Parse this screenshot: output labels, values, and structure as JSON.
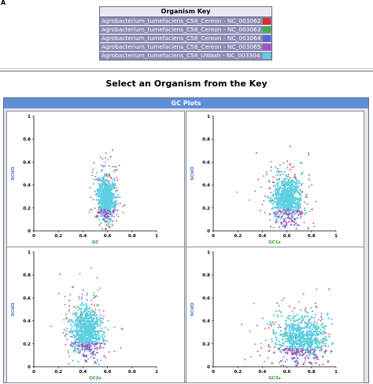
{
  "figure_label": "A",
  "organism_key": {
    "title": "Organism Key",
    "items": [
      {
        "label": "Agrobacterium_tumefaciens_C58_Cereon - NC_003062",
        "color": "#e32a2a"
      },
      {
        "label": "Agrobacterium_tumefaciens_C58_Cereon - NC_003063",
        "color": "#3fb23f"
      },
      {
        "label": "Agrobacterium_tumefaciens_C58_Cereon - NC_003064",
        "color": "#4f6ad6"
      },
      {
        "label": "Agrobacterium_tumefaciens_C58_Cereon - NC_003065",
        "color": "#a84fc4"
      },
      {
        "label": "Agrobacterium_tumefaciens_C58_UWash - NC_003304",
        "color": "#5ed0e0"
      }
    ]
  },
  "select_prompt": "Select an Organism from the Key",
  "gc_panel": {
    "title": "GC Plots"
  },
  "chart_data": [
    {
      "type": "scatter",
      "xlabel": "GC",
      "ylabel": "SCUO",
      "xlim": [
        0,
        1
      ],
      "ylim": [
        0,
        1
      ],
      "xticks": [
        "0",
        "0.2",
        "0.4",
        "0.6",
        "0.8",
        "1"
      ],
      "yticks": [
        "0",
        "0.2",
        "0.4",
        "0.6",
        "0.8",
        "1"
      ],
      "cluster": {
        "x_mean": 0.59,
        "x_sd": 0.035,
        "y_mean": 0.27,
        "y_sd": 0.09
      }
    },
    {
      "type": "scatter",
      "xlabel": "GC1s",
      "ylabel": "SCUO",
      "xlim": [
        0,
        1
      ],
      "ylim": [
        0,
        1
      ],
      "xticks": [
        "0",
        "0.2",
        "0.4",
        "0.6",
        "0.8",
        "1"
      ],
      "yticks": [
        "0",
        "0.2",
        "0.4",
        "0.6",
        "0.8",
        "1"
      ],
      "cluster": {
        "x_mean": 0.6,
        "x_sd": 0.06,
        "y_mean": 0.27,
        "y_sd": 0.09
      }
    },
    {
      "type": "scatter",
      "xlabel": "GC2s",
      "ylabel": "SCUO",
      "xlim": [
        0,
        1
      ],
      "ylim": [
        0,
        1
      ],
      "xticks": [
        "0",
        "0.2",
        "0.4",
        "0.6",
        "0.8",
        "1"
      ],
      "yticks": [
        "0",
        "0.2",
        "0.4",
        "0.6",
        "0.8",
        "1"
      ],
      "cluster": {
        "x_mean": 0.43,
        "x_sd": 0.06,
        "y_mean": 0.3,
        "y_sd": 0.1
      }
    },
    {
      "type": "scatter",
      "xlabel": "GC3s",
      "ylabel": "SCUO",
      "xlim": [
        0,
        1
      ],
      "ylim": [
        0,
        1
      ],
      "xticks": [
        "0",
        "0.2",
        "0.4",
        "0.6",
        "0.8",
        "1"
      ],
      "yticks": [
        "0",
        "0.2",
        "0.4",
        "0.6",
        "0.8",
        "1"
      ],
      "cluster": {
        "x_mean": 0.72,
        "x_sd": 0.1,
        "y_mean": 0.24,
        "y_sd": 0.09
      }
    }
  ]
}
